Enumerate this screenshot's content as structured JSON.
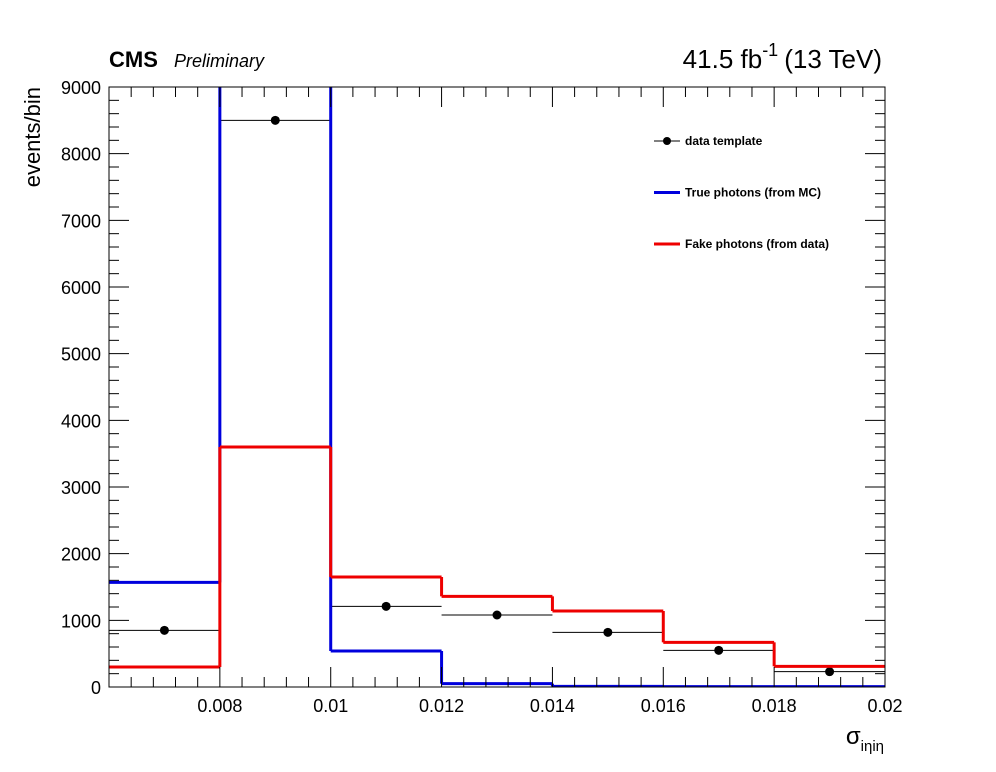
{
  "chart_data": {
    "type": "histogram",
    "cms_label": "CMS",
    "cms_extra": "Preliminary",
    "lumi_text": "41.5 fb",
    "lumi_exponent": "-1",
    "energy_text": "(13 TeV)",
    "ylabel": "events/bin",
    "xlabel": "σ",
    "xlabel_subscript": "iηiη",
    "bins": [
      0.006,
      0.008,
      0.01,
      0.012,
      0.014,
      0.016,
      0.018,
      0.02
    ],
    "series": [
      {
        "name": "data template",
        "color": "#000000",
        "style": "points",
        "values": [
          850,
          8500,
          1210,
          1080,
          820,
          550,
          230
        ]
      },
      {
        "name": "True photons (from MC)",
        "color": "#0000dd",
        "style": "step",
        "values": [
          1570,
          9500,
          540,
          50,
          10,
          5,
          5
        ]
      },
      {
        "name": "Fake photons (from data)",
        "color": "#ee0000",
        "style": "step",
        "values": [
          300,
          3600,
          1650,
          1360,
          1140,
          670,
          310
        ]
      }
    ],
    "xlim": [
      0.006,
      0.02
    ],
    "ylim": [
      0,
      9000
    ],
    "xticks": [
      0.008,
      0.01,
      0.012,
      0.014,
      0.016,
      0.018,
      0.02
    ],
    "yticks": [
      0,
      1000,
      2000,
      3000,
      4000,
      5000,
      6000,
      7000,
      8000,
      9000
    ]
  }
}
